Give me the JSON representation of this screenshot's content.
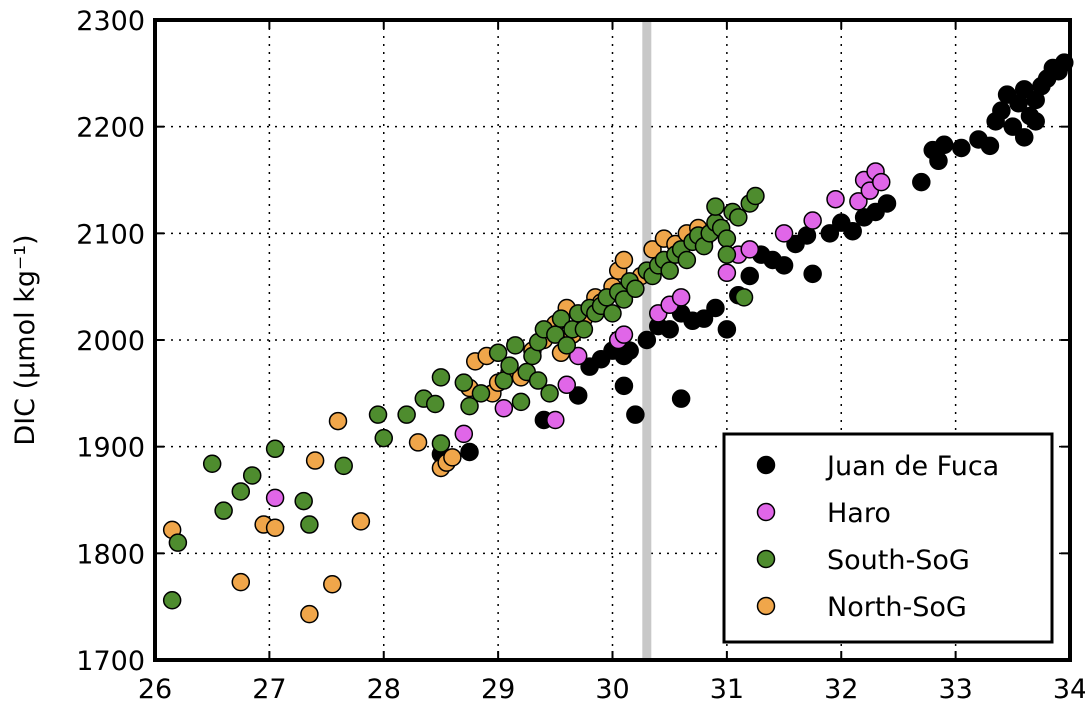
{
  "chart_data": {
    "type": "scatter",
    "title": "",
    "xlabel": "",
    "ylabel": "DIC (µmol kg⁻¹)",
    "xlim": [
      26,
      34
    ],
    "ylim": [
      1700,
      2300
    ],
    "xticks": [
      "26",
      "27",
      "28",
      "29",
      "30",
      "31",
      "32",
      "33",
      "34"
    ],
    "yticks": [
      "1700",
      "1800",
      "1900",
      "2000",
      "2100",
      "2200",
      "2300"
    ],
    "grid": true,
    "legend_position": "lower-right",
    "reference_line_x": 30.3,
    "series": [
      {
        "name": "Juan de Fuca",
        "color": "#000000",
        "points": [
          [
            28.5,
            1893
          ],
          [
            28.75,
            1895
          ],
          [
            29.4,
            1925
          ],
          [
            29.7,
            1948
          ],
          [
            29.8,
            1975
          ],
          [
            29.9,
            1982
          ],
          [
            30.0,
            1990
          ],
          [
            30.05,
            2000
          ],
          [
            30.1,
            1985
          ],
          [
            30.15,
            1990
          ],
          [
            30.1,
            1957
          ],
          [
            30.2,
            1930
          ],
          [
            30.3,
            2000
          ],
          [
            30.4,
            2013
          ],
          [
            30.5,
            2010
          ],
          [
            30.6,
            2025
          ],
          [
            30.6,
            1945
          ],
          [
            30.7,
            2018
          ],
          [
            30.8,
            2020
          ],
          [
            30.9,
            2030
          ],
          [
            31.0,
            2010
          ],
          [
            31.1,
            2042
          ],
          [
            31.2,
            2060
          ],
          [
            31.3,
            2080
          ],
          [
            31.4,
            2075
          ],
          [
            31.5,
            2070
          ],
          [
            31.6,
            2090
          ],
          [
            31.7,
            2098
          ],
          [
            31.75,
            2062
          ],
          [
            31.9,
            2100
          ],
          [
            32.0,
            2110
          ],
          [
            32.1,
            2102
          ],
          [
            32.2,
            2115
          ],
          [
            32.3,
            2120
          ],
          [
            32.4,
            2128
          ],
          [
            32.7,
            2148
          ],
          [
            32.8,
            2178
          ],
          [
            32.9,
            2183
          ],
          [
            32.85,
            2168
          ],
          [
            33.05,
            2180
          ],
          [
            33.2,
            2188
          ],
          [
            33.3,
            2182
          ],
          [
            33.35,
            2205
          ],
          [
            33.4,
            2215
          ],
          [
            33.45,
            2230
          ],
          [
            33.5,
            2200
          ],
          [
            33.55,
            2222
          ],
          [
            33.6,
            2190
          ],
          [
            33.65,
            2210
          ],
          [
            33.7,
            2225
          ],
          [
            33.75,
            2238
          ],
          [
            33.8,
            2245
          ],
          [
            33.85,
            2255
          ],
          [
            33.9,
            2252
          ],
          [
            33.95,
            2260
          ],
          [
            33.6,
            2235
          ],
          [
            33.7,
            2205
          ]
        ]
      },
      {
        "name": "Haro",
        "color": "#e066e8",
        "points": [
          [
            27.05,
            1852
          ],
          [
            28.7,
            1912
          ],
          [
            29.05,
            1936
          ],
          [
            29.5,
            1925
          ],
          [
            29.6,
            1958
          ],
          [
            29.7,
            1985
          ],
          [
            30.05,
            2000
          ],
          [
            30.1,
            2005
          ],
          [
            30.4,
            2025
          ],
          [
            30.5,
            2033
          ],
          [
            30.6,
            2040
          ],
          [
            31.0,
            2063
          ],
          [
            31.1,
            2080
          ],
          [
            31.2,
            2085
          ],
          [
            31.5,
            2100
          ],
          [
            31.75,
            2112
          ],
          [
            31.95,
            2132
          ],
          [
            32.15,
            2130
          ],
          [
            32.2,
            2150
          ],
          [
            32.25,
            2140
          ],
          [
            32.3,
            2158
          ],
          [
            32.35,
            2148
          ]
        ]
      },
      {
        "name": "South-SoG",
        "color": "#4e8c2e",
        "points": [
          [
            26.15,
            1756
          ],
          [
            26.2,
            1810
          ],
          [
            26.5,
            1884
          ],
          [
            26.6,
            1840
          ],
          [
            26.75,
            1858
          ],
          [
            26.85,
            1873
          ],
          [
            27.05,
            1898
          ],
          [
            27.3,
            1849
          ],
          [
            27.35,
            1827
          ],
          [
            27.65,
            1882
          ],
          [
            27.95,
            1930
          ],
          [
            28.0,
            1908
          ],
          [
            28.2,
            1930
          ],
          [
            28.35,
            1945
          ],
          [
            28.45,
            1940
          ],
          [
            28.5,
            1965
          ],
          [
            28.5,
            1903
          ],
          [
            28.7,
            1960
          ],
          [
            28.75,
            1938
          ],
          [
            28.85,
            1950
          ],
          [
            29.0,
            1988
          ],
          [
            29.05,
            1962
          ],
          [
            29.1,
            1976
          ],
          [
            29.15,
            1995
          ],
          [
            29.25,
            1970
          ],
          [
            29.3,
            1985
          ],
          [
            29.35,
            1998
          ],
          [
            29.4,
            2010
          ],
          [
            29.45,
            1950
          ],
          [
            29.5,
            2005
          ],
          [
            29.55,
            2020
          ],
          [
            29.65,
            2010
          ],
          [
            29.7,
            2025
          ],
          [
            29.75,
            2010
          ],
          [
            29.8,
            2030
          ],
          [
            29.85,
            2025
          ],
          [
            29.9,
            2032
          ],
          [
            29.95,
            2040
          ],
          [
            30.0,
            2025
          ],
          [
            30.05,
            2045
          ],
          [
            30.1,
            2038
          ],
          [
            30.15,
            2055
          ],
          [
            30.2,
            2048
          ],
          [
            30.3,
            2065
          ],
          [
            30.35,
            2060
          ],
          [
            30.4,
            2070
          ],
          [
            30.45,
            2075
          ],
          [
            30.5,
            2065
          ],
          [
            30.55,
            2080
          ],
          [
            30.6,
            2085
          ],
          [
            30.65,
            2075
          ],
          [
            30.7,
            2092
          ],
          [
            30.75,
            2098
          ],
          [
            30.8,
            2088
          ],
          [
            30.85,
            2100
          ],
          [
            30.9,
            2110
          ],
          [
            30.95,
            2105
          ],
          [
            31.0,
            2095
          ],
          [
            31.05,
            2120
          ],
          [
            31.1,
            2115
          ],
          [
            31.15,
            2040
          ],
          [
            31.2,
            2128
          ],
          [
            31.25,
            2135
          ],
          [
            30.9,
            2125
          ],
          [
            31.0,
            2080
          ],
          [
            29.6,
            1995
          ],
          [
            29.35,
            1962
          ],
          [
            29.2,
            1942
          ]
        ]
      },
      {
        "name": "North-SoG",
        "color": "#f0a64a",
        "points": [
          [
            26.15,
            1822
          ],
          [
            26.75,
            1773
          ],
          [
            26.95,
            1827
          ],
          [
            27.05,
            1824
          ],
          [
            27.35,
            1743
          ],
          [
            27.4,
            1887
          ],
          [
            27.55,
            1771
          ],
          [
            27.6,
            1924
          ],
          [
            27.8,
            1830
          ],
          [
            28.3,
            1904
          ],
          [
            28.5,
            1880
          ],
          [
            28.55,
            1885
          ],
          [
            28.6,
            1890
          ],
          [
            28.75,
            1955
          ],
          [
            28.8,
            1980
          ],
          [
            28.9,
            1985
          ],
          [
            28.95,
            1950
          ],
          [
            29.0,
            1960
          ],
          [
            29.1,
            1970
          ],
          [
            29.2,
            1965
          ],
          [
            29.3,
            1990
          ],
          [
            29.4,
            2000
          ],
          [
            29.5,
            2015
          ],
          [
            29.55,
            1988
          ],
          [
            29.6,
            2030
          ],
          [
            29.65,
            2005
          ],
          [
            29.75,
            2020
          ],
          [
            29.85,
            2040
          ],
          [
            29.9,
            2035
          ],
          [
            30.0,
            2050
          ],
          [
            30.05,
            2065
          ],
          [
            30.1,
            2075
          ],
          [
            30.15,
            2048
          ],
          [
            30.25,
            2060
          ],
          [
            30.35,
            2085
          ],
          [
            30.45,
            2095
          ],
          [
            30.55,
            2090
          ],
          [
            30.65,
            2100
          ],
          [
            30.75,
            2105
          ],
          [
            30.8,
            2092
          ]
        ]
      }
    ]
  }
}
